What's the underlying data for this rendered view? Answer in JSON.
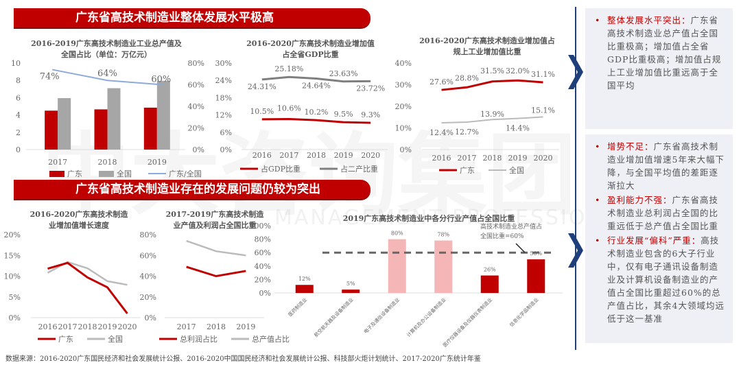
{
  "banners": [
    "广东省高技术制造业整体发展水平极高",
    "广东省高技术制造业存在的发展问题仍较为突出"
  ],
  "watermark": {
    "text": "中大咨询集团",
    "sub": "MANAGEMENT PROFESSIONAL"
  },
  "colors": {
    "red": "#c00000",
    "gray": "#a6a6a6",
    "dark": "#7f7f7f",
    "blue": "#8eaadb",
    "pink": "#f4b6b6"
  },
  "chart_data": [
    {
      "id": "c1",
      "type": "bar",
      "title": "2016-2019广东高技术制造业工业总产值及全国占比（单位：万亿元）",
      "categories": [
        "2017",
        "2018",
        "2019"
      ],
      "yticks": [
        "10",
        "8",
        "6",
        "4",
        "2",
        "0"
      ],
      "y2ticks": [
        "80%",
        "60%",
        "40%",
        "20%",
        "0%"
      ],
      "ylim": [
        0,
        10
      ],
      "y2lim": [
        0,
        80
      ],
      "series": [
        {
          "name": "广东",
          "values": [
            4.5,
            4.65,
            4.85
          ]
        },
        {
          "name": "全国",
          "values": [
            5.95,
            7.1,
            7.95
          ]
        },
        {
          "name": "广东/全国",
          "axis": "right",
          "type": "line",
          "values": [
            74,
            64,
            60
          ],
          "labels": [
            "74%",
            "64%",
            "60%"
          ]
        }
      ]
    },
    {
      "id": "c2",
      "type": "line",
      "title": "2016-2020广东高技术制造业增加值占全省GDP比重",
      "categories": [
        "2016",
        "2017",
        "2018",
        "2019",
        "2020"
      ],
      "yticks": [
        "30%",
        "24%",
        "18%",
        "12%",
        "6%",
        "0%"
      ],
      "ylim": [
        0,
        30
      ],
      "series": [
        {
          "name": "占GDP比重",
          "values": [
            10.5,
            10.6,
            10.2,
            9.5,
            9.3
          ],
          "labels": [
            "10.5%",
            "10.6%",
            "10.2%",
            "9.5%",
            "9.3%"
          ]
        },
        {
          "name": "占二产比重",
          "values": [
            24.31,
            25.18,
            24.64,
            23.63,
            23.72
          ],
          "labels": [
            "24.31%",
            "25.18%",
            "24.64%",
            "23.63%",
            "23.72%"
          ]
        }
      ]
    },
    {
      "id": "c3",
      "type": "line",
      "title": "2016-2020广东高技术制造业增加值占规上工业增加值比重",
      "categories": [
        "2016",
        "2017",
        "2018",
        "2019",
        "2020"
      ],
      "yticks": [
        "40%",
        "30%",
        "20%",
        "10%",
        "0%"
      ],
      "ylim": [
        0,
        40
      ],
      "series": [
        {
          "name": "广东",
          "values": [
            27.6,
            28.8,
            31.5,
            32.0,
            31.1
          ],
          "labels": [
            "27.6%",
            "28.8%",
            "31.5%",
            "32.0%",
            "31.1%"
          ]
        },
        {
          "name": "全国",
          "values": [
            12.4,
            12.7,
            13.9,
            14.4,
            15.1
          ],
          "labels": [
            "12.4%",
            "12.7%",
            "13.9%",
            "14.4%",
            "15.1%"
          ]
        }
      ]
    },
    {
      "id": "c4",
      "type": "line",
      "title": "2016-2020广东高技术制造业增加值增长速度",
      "categories": [
        "2016",
        "2017",
        "2018",
        "2019",
        "2020"
      ],
      "yticks": [
        "20%",
        "15%",
        "10%",
        "5%",
        "0%"
      ],
      "ylim": [
        0,
        20
      ],
      "series": [
        {
          "name": "广东",
          "values": [
            11.8,
            13.2,
            9.7,
            7.3,
            1.0
          ]
        },
        {
          "name": "全国",
          "values": [
            10.8,
            13.4,
            11.9,
            8.8,
            7.9
          ]
        }
      ]
    },
    {
      "id": "c5",
      "type": "line",
      "title": "2017-2019广东高技术制造业产值及利润占全国比重",
      "categories": [
        "2017",
        "2018",
        "2019"
      ],
      "yticks": [
        "80%",
        "60%",
        "40%",
        "20%",
        "0%"
      ],
      "ylim": [
        0,
        80
      ],
      "series": [
        {
          "name": "总利润占比",
          "values": [
            49,
            40,
            45
          ]
        },
        {
          "name": "总产值占比",
          "values": [
            74,
            64,
            60
          ]
        }
      ]
    },
    {
      "id": "c6",
      "type": "bar",
      "title": "2019广东高技术制造业中各分行业产值占全国比重",
      "categories": [
        "医药制造业",
        "航空航天器及设备制造业",
        "电子及通信设备制造业",
        "计算机及办公设备制造业",
        "医疗仪器设备及仪器仪表制造业",
        "信息化学品制造业"
      ],
      "yticks": [
        "100%",
        "80%",
        "60%",
        "40%",
        "20%",
        "0%"
      ],
      "ylim": [
        0,
        100
      ],
      "values": [
        12,
        5,
        80,
        78,
        26,
        50
      ],
      "labels": [
        "12%",
        "5%",
        "80%",
        "78%",
        "26%",
        "50%"
      ],
      "highlight": [
        false,
        false,
        true,
        true,
        false,
        false
      ],
      "reference": {
        "value": 60,
        "annotation": [
          "高技术制造业总产值占",
          "全国比重=60%"
        ]
      }
    }
  ],
  "panels": [
    {
      "items": [
        {
          "head": "整体发展水平突出：",
          "body": "广东省高技术制造业总产值占全国比重极高；增加值占全省GDP比重极高；增加值占规上工业增加值比重远高于全国平均"
        }
      ]
    },
    {
      "items": [
        {
          "head": "增势不足：",
          "body": "广东省高技术制造业增加值增速5年来大幅下降，与全国平均值的差距逐渐拉大"
        },
        {
          "head": "盈利能力不强：",
          "body": "广东省高技术制造业总利润占全国的比重远低于总产值占全国比重"
        },
        {
          "head": "行业发展“偏科”严重：",
          "body": "高技术制造业包含的6大子行业中，仅有电子通讯设备制造业及计算机设备制造业的产值占全国比重超过60%的总产值占比，其余4大领域均远低于这一基准"
        }
      ]
    }
  ],
  "footer": "数据来源：2016-2020广东国民经济和社会发展统计公报、2016-2020中国国民经济和社会发展统计公报、科技部火炬计划统计、2017-2020广东统计年鉴"
}
